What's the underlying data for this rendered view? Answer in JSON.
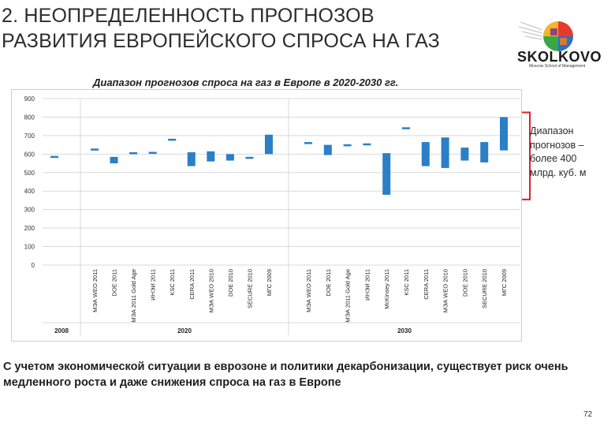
{
  "title_line1": "2. НЕОПРЕДЕЛЕННОСТЬ ПРОГНОЗОВ",
  "title_line2": "РАЗВИТИЯ ЕВРОПЕЙСКОГО СПРОСА НА ГАЗ",
  "logo": {
    "text": "SKOLKOVO",
    "subtext": "Moscow School of Management"
  },
  "colors": {
    "bar": "#2b7fc6",
    "bracket": "#e0202a",
    "grid": "#d9d9d9",
    "axis": "#888888"
  },
  "range_note": [
    "Диапазон",
    "прогнозов –",
    "более 400",
    "млрд. куб. м"
  ],
  "footer_text": "С учетом экономической ситуации в еврозоне и политики декарбонизации, существует риск очень медленного роста и даже снижения спроса на газ в Европе",
  "page_number": "72",
  "chart_data": {
    "type": "bar",
    "subtype": "floating range",
    "title": "Диапазон прогнозов спроса на газ в Европе в 2020-2030 гг.",
    "ylim": [
      0,
      900
    ],
    "yticks": [
      "0",
      "100",
      "200",
      "300",
      "400",
      "500",
      "600",
      "700",
      "800",
      "900"
    ],
    "grid": true,
    "groups": [
      {
        "label": "2008",
        "items": [
          {
            "source": "",
            "low": 585,
            "high": 590
          }
        ]
      },
      {
        "label": "2020",
        "items": [
          {
            "source": "МЭА WEO 2011",
            "low": 625,
            "high": 630
          },
          {
            "source": "DOE 2011",
            "low": 550,
            "high": 585
          },
          {
            "source": "МЭА 2011 Gold Age",
            "low": 605,
            "high": 610
          },
          {
            "source": "ИНЭИ 2011",
            "low": 608,
            "high": 612
          },
          {
            "source": "KSC 2011",
            "low": 678,
            "high": 683
          },
          {
            "source": "CERA 2011",
            "low": 535,
            "high": 610
          },
          {
            "source": "МЭА WEO 2010",
            "low": 560,
            "high": 615
          },
          {
            "source": "DOE 2010",
            "low": 565,
            "high": 600
          },
          {
            "source": "SECURE 2010",
            "low": 580,
            "high": 585
          },
          {
            "source": "МГС 2009",
            "low": 600,
            "high": 705
          }
        ]
      },
      {
        "label": "2030",
        "items": [
          {
            "source": "МЭА WEO 2011",
            "low": 660,
            "high": 665
          },
          {
            "source": "DOE 2011",
            "low": 595,
            "high": 650
          },
          {
            "source": "МЭА 2011 Gold Age",
            "low": 648,
            "high": 653
          },
          {
            "source": "ИНЭИ 2011",
            "low": 653,
            "high": 658
          },
          {
            "source": "McKinsey 2011",
            "low": 380,
            "high": 605
          },
          {
            "source": "KSC 2011",
            "low": 740,
            "high": 745
          },
          {
            "source": "CERA 2011",
            "low": 535,
            "high": 665
          },
          {
            "source": "МЭА WEO 2010",
            "low": 525,
            "high": 690
          },
          {
            "source": "DOE 2010",
            "low": 565,
            "high": 635
          },
          {
            "source": "SECURE 2010",
            "low": 555,
            "high": 665
          },
          {
            "source": "МГС 2009",
            "low": 620,
            "high": 800
          }
        ]
      }
    ]
  }
}
